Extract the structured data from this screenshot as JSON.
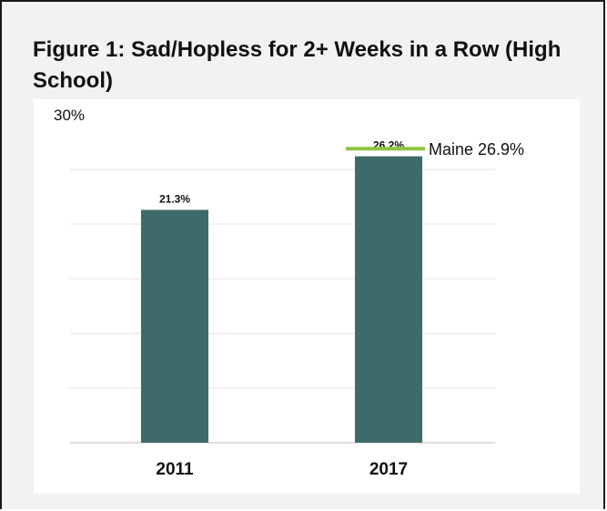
{
  "title": "Figure 1: Sad/Hopless for 2+ Weeks in a Row (High School)",
  "chart_data": {
    "type": "bar",
    "categories": [
      "2011",
      "2017"
    ],
    "values": [
      21.3,
      26.2
    ],
    "data_labels": [
      "21.3%",
      "26.2%"
    ],
    "ylim": [
      0,
      30
    ],
    "yticks_shown": [
      "30%"
    ],
    "grid": true,
    "bar_color": "#3d6b69",
    "reference_line": {
      "label": "Maine 26.9%",
      "value": 26.9,
      "color": "#8cc63f"
    }
  }
}
